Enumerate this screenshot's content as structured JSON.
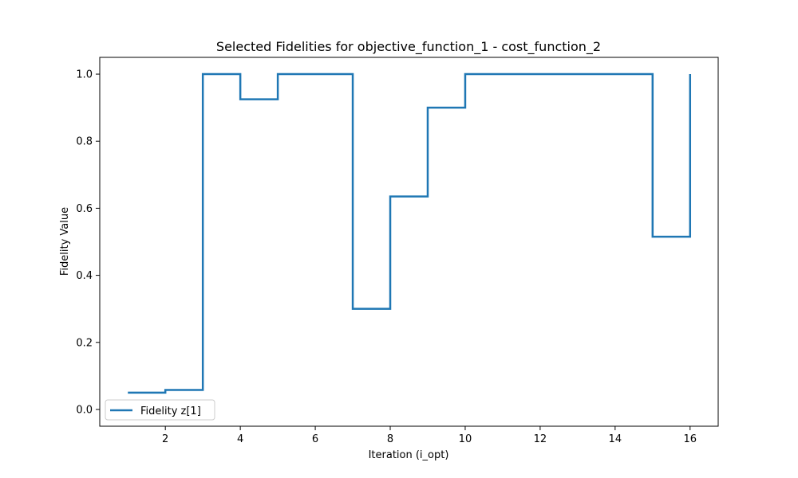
{
  "chart_data": {
    "type": "line",
    "drawstyle": "steps-post",
    "title": "Selected Fidelities for objective_function_1 - cost_function_2",
    "xlabel": "Iteration (i_opt)",
    "ylabel": "Fidelity Value",
    "xlim": [
      0.25,
      16.75
    ],
    "ylim": [
      -0.05,
      1.05
    ],
    "xticks": [
      2,
      4,
      6,
      8,
      10,
      12,
      14,
      16
    ],
    "yticks": [
      0.0,
      0.2,
      0.4,
      0.6,
      0.8,
      1.0
    ],
    "xtick_labels": [
      "2",
      "4",
      "6",
      "8",
      "10",
      "12",
      "14",
      "16"
    ],
    "ytick_labels": [
      "0.0",
      "0.2",
      "0.4",
      "0.6",
      "0.8",
      "1.0"
    ],
    "grid": false,
    "legend_position": "lower-left",
    "series": [
      {
        "name": "Fidelity z[1]",
        "color": "#1f77b4",
        "x": [
          1,
          2,
          3,
          4,
          5,
          6,
          7,
          8,
          9,
          10,
          11,
          12,
          13,
          14,
          15,
          16
        ],
        "y": [
          0.05,
          0.058,
          1.0,
          0.925,
          1.0,
          1.0,
          0.3,
          0.635,
          0.9,
          1.0,
          1.0,
          1.0,
          1.0,
          1.0,
          0.515,
          1.0
        ]
      }
    ]
  }
}
